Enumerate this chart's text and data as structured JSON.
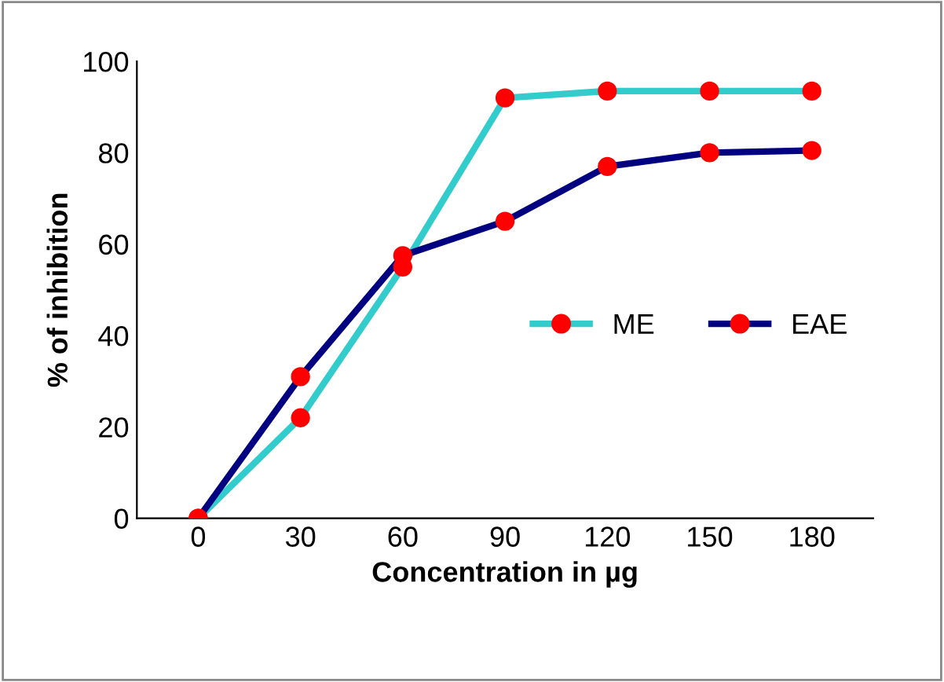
{
  "chart_data": {
    "type": "line",
    "xlabel": "Concentration in µg",
    "ylabel": "% of inhibition",
    "categories": [
      "0",
      "30",
      "60",
      "90",
      "120",
      "150",
      "180"
    ],
    "ylim": [
      0,
      100
    ],
    "yticks": [
      0,
      20,
      40,
      60,
      80,
      100
    ],
    "grid": false,
    "legend": "right",
    "marker": "circle",
    "line_style": "solid",
    "series": [
      {
        "name": "ME",
        "color": "#33cccc",
        "colors": [
          "#ff0000",
          "#ff0000",
          "#ff0000",
          "#ff0000",
          "#ff0000",
          "#ff0000",
          "#ff0000"
        ],
        "values": [
          0,
          22,
          55,
          92,
          93.5,
          93.5,
          93.5
        ]
      },
      {
        "name": "EAE",
        "color": "#000080",
        "colors": [
          "#ff0000",
          "#ff0000",
          "#ff0000",
          "#ff0000",
          "#ff0000",
          "#ff0000",
          "#ff0000"
        ],
        "values": [
          0,
          31,
          57.5,
          65,
          77,
          80,
          80.5
        ]
      }
    ]
  }
}
